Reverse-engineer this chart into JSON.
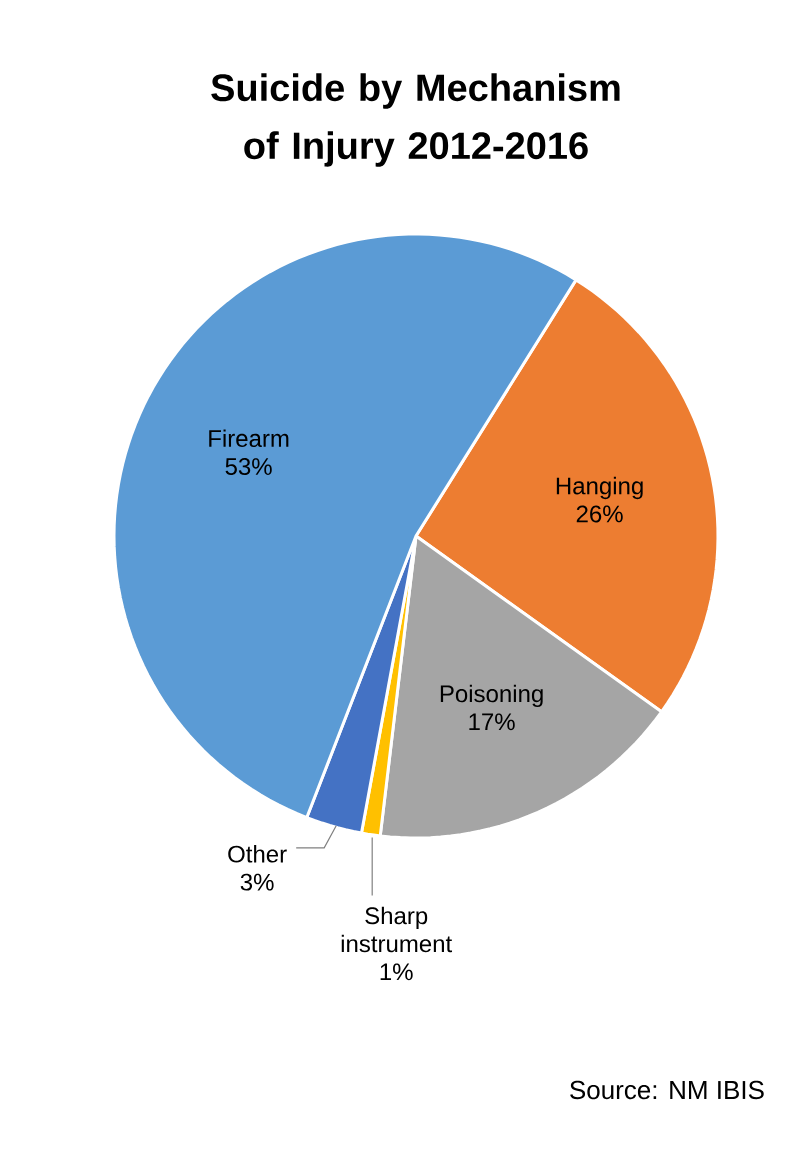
{
  "chart_data": {
    "type": "pie",
    "title": "Suicide by Mechanism of Injury 2012-2016",
    "categories": [
      "Hanging",
      "Poisoning",
      "Sharp instrument",
      "Other",
      "Firearm"
    ],
    "values": [
      26,
      17,
      1,
      3,
      53
    ],
    "value_labels": [
      "26%",
      "17%",
      "1%",
      "3%",
      "53%"
    ],
    "colors": [
      "#ed7d31",
      "#a5a5a5",
      "#ffc000",
      "#4472c4",
      "#5b9bd5"
    ],
    "annotations": [
      "Source: NM IBIS"
    ]
  }
}
